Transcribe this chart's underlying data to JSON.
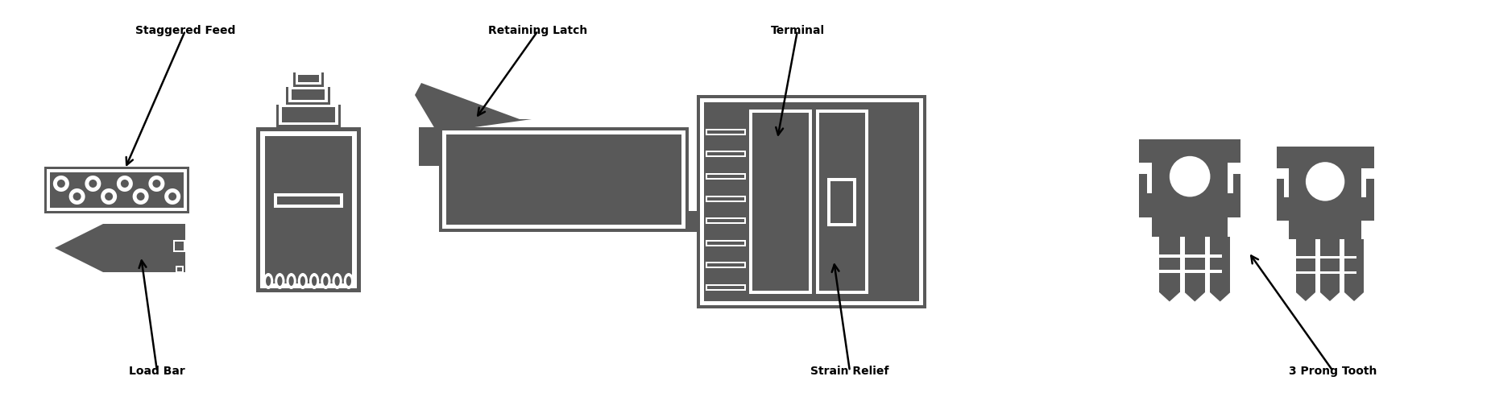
{
  "bg_color": "#ffffff",
  "part_color": "#595959",
  "white": "#ffffff",
  "text_color": "#000000",
  "fontsize": 10,
  "labels": {
    "staggered_feed": "Staggered Feed",
    "load_bar": "Load Bar",
    "retaining_latch": "Retaining Latch",
    "terminal": "Terminal",
    "strain_relief": "Strain Relief",
    "three_prong_tooth": "3 Prong Tooth"
  }
}
